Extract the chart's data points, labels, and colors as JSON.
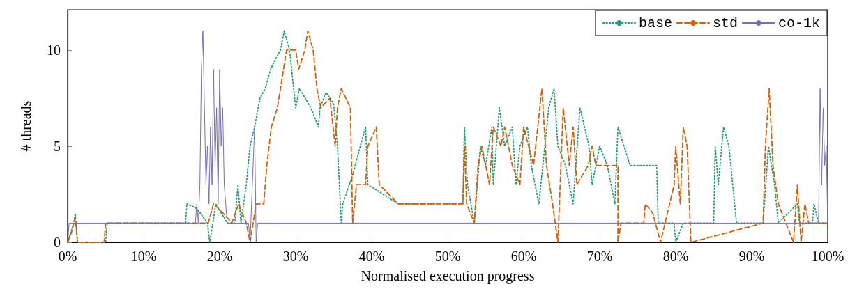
{
  "chart_data": {
    "type": "line",
    "xlabel": "Normalised execution progress",
    "ylabel": "# threads",
    "xlim": [
      0,
      100
    ],
    "ylim": [
      0,
      12.1
    ],
    "yticks": [
      0,
      5,
      10
    ],
    "xticks": [
      {
        "value": 0,
        "label": "0%"
      },
      {
        "value": 10,
        "label": "10%"
      },
      {
        "value": 20,
        "label": "20%"
      },
      {
        "value": 30,
        "label": "30%"
      },
      {
        "value": 40,
        "label": "40%"
      },
      {
        "value": 50,
        "label": "50%"
      },
      {
        "value": 60,
        "label": "60%"
      },
      {
        "value": 70,
        "label": "70%"
      },
      {
        "value": 80,
        "label": "80%"
      },
      {
        "value": 90,
        "label": "90%"
      },
      {
        "value": 100,
        "label": "100%"
      }
    ],
    "grid": false,
    "legend": "top right",
    "marker": "none",
    "series": [
      {
        "name": "base",
        "color": "#1b9e77",
        "line_style": "dotted",
        "x": [
          0,
          0.8,
          1,
          1.3,
          5,
          5.2,
          15.5,
          15.7,
          16.8,
          17.5,
          18.4,
          18.7,
          19.5,
          21,
          22,
          22.4,
          22.8,
          23.5,
          24,
          24.6,
          25.3,
          26,
          26.7,
          27.3,
          28,
          28.5,
          29.2,
          30,
          30.5,
          32,
          33,
          33.2,
          34,
          35,
          35.5,
          36,
          36.2,
          37.5,
          38.5,
          39.2,
          39.5,
          43.5,
          52,
          52.2,
          52.6,
          53.5,
          54.3,
          55,
          55.8,
          56,
          56.8,
          57.5,
          58.5,
          59,
          59.5,
          60.5,
          61,
          62,
          63.3,
          64,
          64.5,
          65.5,
          66.5,
          67.4,
          68,
          68.6,
          69,
          70,
          71,
          72,
          72.4,
          73.2,
          74,
          77.5,
          77.7,
          79.8,
          80,
          81,
          85,
          85.2,
          85.6,
          86.3,
          87,
          88,
          91.5,
          92.2,
          93,
          93.5,
          96,
          96.3,
          98,
          98.2,
          98.8,
          100
        ],
        "values": [
          0,
          1,
          1.5,
          0,
          0,
          1,
          1,
          2,
          1.8,
          1.5,
          1,
          0,
          2,
          1,
          1,
          3,
          1,
          3,
          5,
          6,
          7.5,
          8,
          9,
          9.5,
          10,
          11,
          10,
          7,
          8,
          7,
          6,
          7,
          7.8,
          7.2,
          5,
          1,
          2,
          3.5,
          5,
          6,
          3,
          2,
          2,
          6,
          3,
          1,
          5,
          4,
          6,
          3,
          7,
          5,
          6,
          3,
          5,
          6,
          4,
          2,
          7,
          8,
          5,
          4,
          2,
          7,
          6,
          5,
          3,
          5,
          4,
          2,
          6,
          5,
          4,
          4,
          1,
          1,
          0,
          1,
          1,
          5,
          3,
          6,
          5,
          1,
          1,
          5,
          3,
          1,
          2,
          1,
          1,
          2,
          1,
          1
        ]
      },
      {
        "name": "std",
        "color": "#d95f02",
        "line_style": "dashed",
        "x": [
          0,
          0.5,
          1,
          1.3,
          4.8,
          5,
          16.5,
          18.5,
          19.2,
          20.5,
          21.6,
          22.5,
          23.5,
          24,
          24.8,
          25.8,
          26.2,
          26.8,
          27.6,
          28,
          28.8,
          30,
          30.4,
          31.2,
          31.6,
          32.3,
          32.8,
          33.3,
          34.5,
          35.2,
          35.5,
          36,
          37.2,
          37.5,
          38,
          39.2,
          39.5,
          40.6,
          41,
          43.5,
          52,
          52.2,
          52.5,
          53.5,
          54,
          54.5,
          55.5,
          56,
          57,
          57.5,
          58.5,
          59.5,
          60,
          61.3,
          62.4,
          63,
          63.8,
          64.5,
          65.2,
          66,
          66.5,
          67,
          68.5,
          69,
          69.5,
          71.5,
          72.4,
          72.4,
          72.8,
          75.8,
          76,
          77,
          78,
          79.8,
          80,
          80.6,
          81,
          81.5,
          82,
          91.5,
          91.8,
          92.3,
          92.8,
          93.5,
          94.5,
          95.5,
          96,
          96.5,
          97,
          97.5,
          100
        ],
        "values": [
          0,
          0.5,
          1.3,
          0,
          0,
          1,
          1,
          1,
          2,
          1.5,
          1,
          2,
          1,
          0,
          2,
          2,
          4,
          6,
          7,
          8,
          10,
          10,
          9,
          10,
          11,
          10,
          8,
          7,
          7.5,
          5,
          7,
          8,
          7,
          1,
          3,
          3,
          5,
          6,
          3,
          2,
          2,
          5,
          2,
          1,
          4,
          5,
          3,
          6,
          5,
          6,
          4,
          3,
          6,
          4,
          8,
          4,
          2,
          0,
          7,
          4,
          6,
          3,
          4,
          5,
          4,
          4,
          4,
          0,
          1,
          1,
          2,
          1.5,
          0,
          3,
          5,
          2,
          6,
          5,
          0,
          1,
          5,
          8,
          4,
          2,
          1,
          0,
          3,
          0,
          2,
          1,
          1
        ]
      },
      {
        "name": "co-1k",
        "color": "#7570b3",
        "line_style": "solid",
        "x": [
          0,
          0.2,
          16.8,
          17,
          17.2,
          17.4,
          17.6,
          17.8,
          18,
          18.2,
          18.4,
          18.6,
          18.8,
          19,
          19.2,
          19.4,
          19.6,
          19.8,
          20,
          20.2,
          20.4,
          20.6,
          20.8,
          21,
          23.8,
          24,
          24.3,
          24.6,
          24.8,
          25,
          98.8,
          99,
          99.2,
          99.4,
          99.6,
          99.8,
          100
        ],
        "values": [
          0,
          1,
          1,
          2,
          1,
          3,
          9,
          11,
          7,
          3,
          5,
          2,
          6,
          3,
          9,
          4,
          7,
          2,
          9,
          5,
          7,
          3,
          2,
          1,
          1,
          0,
          3,
          6,
          0,
          1,
          1,
          8,
          3,
          7,
          4,
          5,
          1
        ]
      }
    ]
  }
}
